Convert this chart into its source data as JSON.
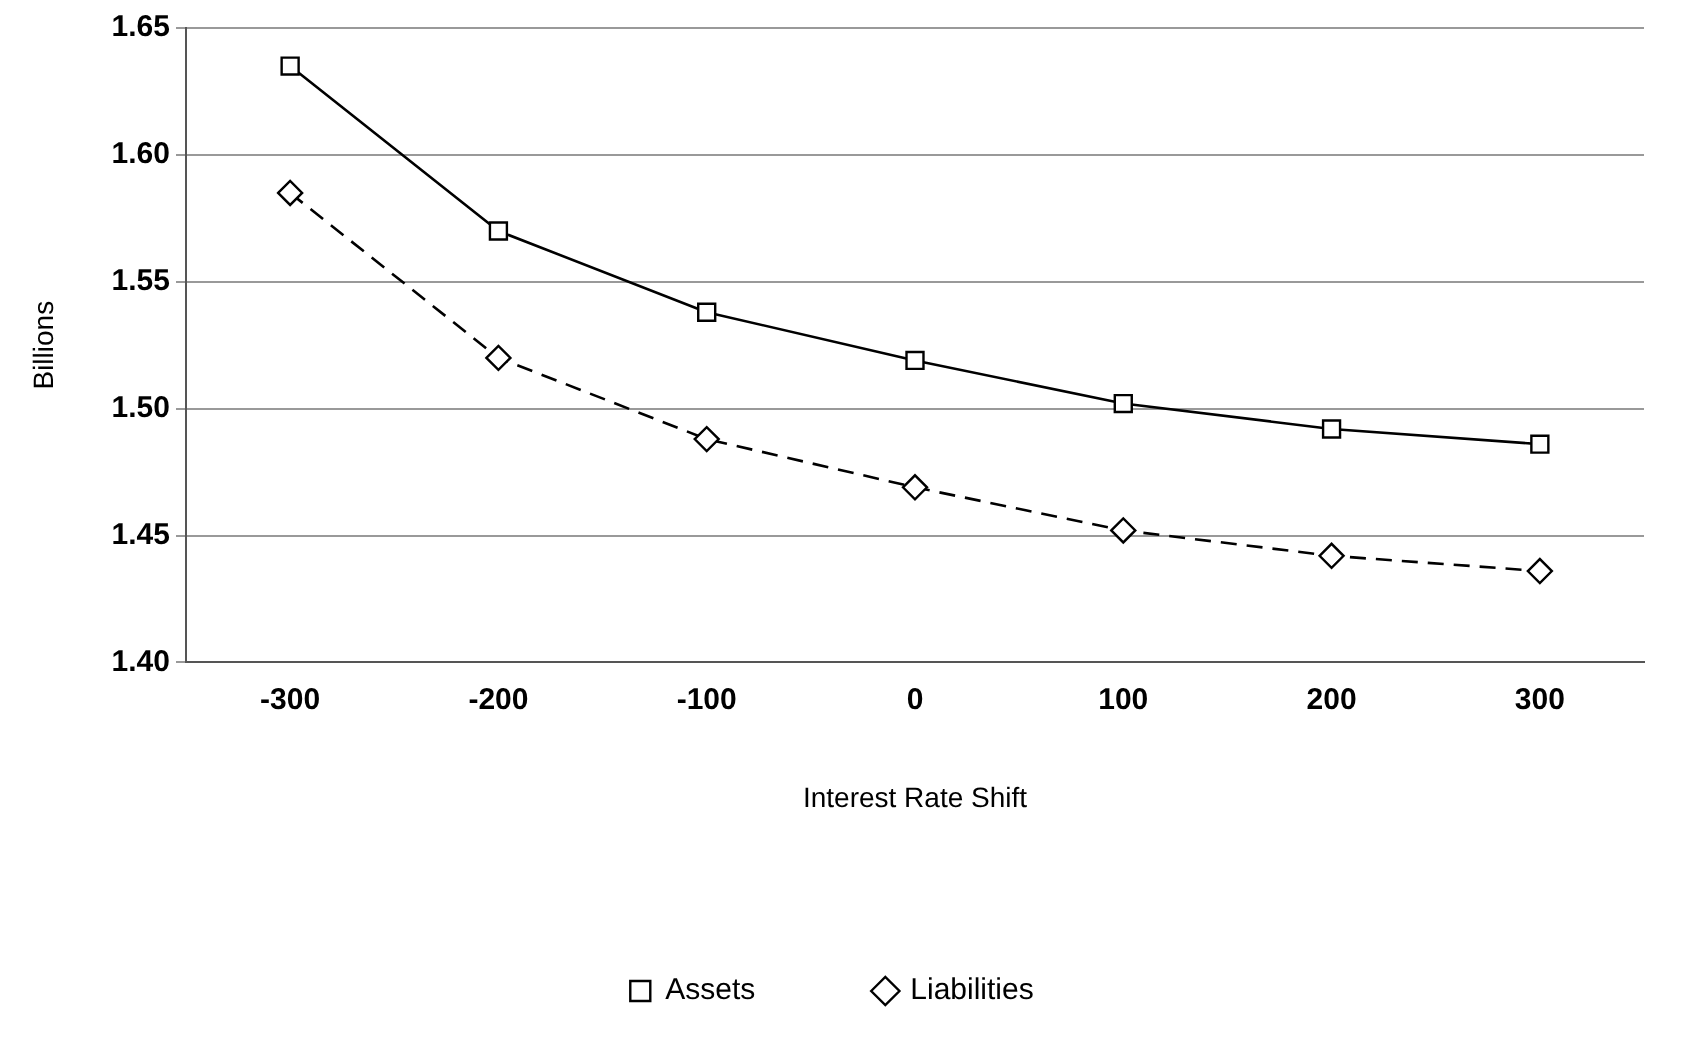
{
  "chart_data": {
    "type": "line",
    "xlabel": "Interest Rate Shift",
    "ylabel": "Billions",
    "categories": [
      "-300",
      "-200",
      "-100",
      "0",
      "100",
      "200",
      "300"
    ],
    "series": [
      {
        "name": "Assets",
        "color": "#000000",
        "marker": "square",
        "line_style": "solid",
        "values": [
          1.635,
          1.57,
          1.538,
          1.519,
          1.502,
          1.492,
          1.486
        ]
      },
      {
        "name": "Liabilities",
        "color": "#000000",
        "marker": "diamond",
        "line_style": "dashed",
        "values": [
          1.585,
          1.52,
          1.488,
          1.469,
          1.452,
          1.442,
          1.436
        ]
      }
    ],
    "ylim": [
      1.4,
      1.65
    ],
    "yticks": [
      {
        "value": 1.4,
        "label": "1.40"
      },
      {
        "value": 1.45,
        "label": "1.45"
      },
      {
        "value": 1.5,
        "label": "1.50"
      },
      {
        "value": 1.55,
        "label": "1.55"
      },
      {
        "value": 1.6,
        "label": "1.60"
      },
      {
        "value": 1.65,
        "label": "1.65"
      }
    ],
    "grid": "y",
    "legend": "bottom"
  }
}
